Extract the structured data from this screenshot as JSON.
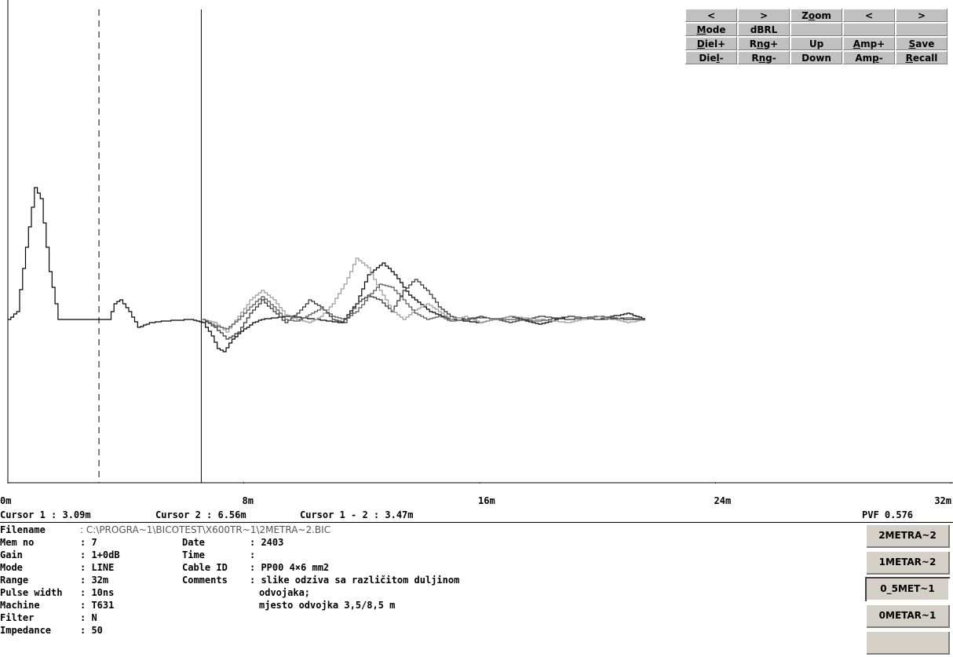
{
  "toolbar": {
    "rows": [
      [
        {
          "label": "<",
          "u": ""
        },
        {
          "label": ">",
          "u": ""
        },
        {
          "label": "Zoom",
          "u": "o"
        },
        {
          "label": "<",
          "u": ""
        },
        {
          "label": ">",
          "u": ""
        }
      ],
      [
        {
          "label": "Mode",
          "u": "M"
        },
        {
          "label": "dBRL",
          "u": ""
        },
        {
          "label": "",
          "u": ""
        },
        {
          "label": "",
          "u": ""
        },
        {
          "label": "",
          "u": ""
        }
      ],
      [
        {
          "label": "Diel+",
          "u": "D"
        },
        {
          "label": "Rng+",
          "u": "n"
        },
        {
          "label": "Up",
          "u": ""
        },
        {
          "label": "Amp+",
          "u": "A"
        },
        {
          "label": "Save",
          "u": "S"
        }
      ],
      [
        {
          "label": "Diel-",
          "u": "l"
        },
        {
          "label": "Rng-",
          "u": "n"
        },
        {
          "label": "Down",
          "u": ""
        },
        {
          "label": "Amp-",
          "u": "p"
        },
        {
          "label": "Recall",
          "u": "R"
        }
      ]
    ]
  },
  "chart_data": {
    "type": "line",
    "x_ticks": [
      "0m",
      "8m",
      "16m",
      "24m",
      "32m"
    ],
    "xlim": [
      0,
      32
    ],
    "cursor1_m": 3.09,
    "cursor2_m": 6.56,
    "series": [
      {
        "color": "#000000",
        "x": [
          0,
          0.3,
          0.6,
          0.9,
          1.1,
          1.4,
          1.7,
          2.0,
          2.8,
          3.4,
          3.6,
          3.8,
          4.1,
          4.4,
          4.8,
          5.2,
          6.2,
          6.6,
          6.9,
          7.1,
          7.3,
          7.6,
          8.0,
          8.3,
          8.6,
          9.5,
          10.5,
          11.3,
          11.8,
          12.2,
          12.7,
          13.1,
          13.6,
          14.3,
          15.0,
          16.0,
          17.0,
          18.0,
          19.0,
          20.0,
          21.0,
          21.6
        ],
        "y": [
          0,
          0.05,
          0.45,
          0.82,
          0.75,
          0.3,
          0,
          0,
          0,
          0,
          0.1,
          0.12,
          0.05,
          -0.05,
          -0.02,
          -0.01,
          0,
          -0.02,
          -0.1,
          -0.18,
          -0.2,
          -0.12,
          -0.06,
          -0.02,
          0.0,
          0.02,
          0.0,
          -0.02,
          0.1,
          0.28,
          0.35,
          0.28,
          0.15,
          0.05,
          0.0,
          -0.02,
          0.02,
          -0.03,
          0.02,
          0.0,
          0.04,
          0.0
        ]
      },
      {
        "color": "#303030",
        "x": [
          6.6,
          7.0,
          7.4,
          7.8,
          8.2,
          8.6,
          9.0,
          9.4,
          9.8,
          10.2,
          10.6,
          11.0,
          11.4,
          11.8,
          12.2,
          12.6,
          13.0,
          13.4,
          13.8,
          14.2,
          14.6,
          15.0,
          15.5,
          16.0,
          17.0,
          18.0,
          19.0,
          20.0,
          21.0,
          21.6
        ],
        "y": [
          0,
          -0.05,
          -0.12,
          -0.08,
          0.04,
          0.12,
          0.05,
          -0.02,
          0.04,
          0.12,
          0.08,
          0.0,
          -0.02,
          0.1,
          0.15,
          0.12,
          0.05,
          0.18,
          0.25,
          0.18,
          0.08,
          0.02,
          0.0,
          0.02,
          -0.02,
          0.02,
          0.0,
          0.02,
          0.0,
          0.0
        ]
      },
      {
        "color": "#999999",
        "x": [
          6.6,
          7.0,
          7.4,
          7.8,
          8.2,
          8.6,
          9.0,
          9.4,
          9.8,
          10.2,
          10.6,
          11.0,
          11.4,
          11.8,
          12.2,
          12.6,
          13.0,
          13.4,
          13.8,
          14.2,
          14.6,
          15.0,
          15.5,
          16.0,
          17.0,
          18.0,
          19.0,
          20.0,
          21.0,
          21.6
        ],
        "y": [
          0,
          -0.02,
          -0.08,
          0.02,
          0.12,
          0.18,
          0.12,
          0.03,
          0.0,
          -0.02,
          0.02,
          0.1,
          0.22,
          0.38,
          0.32,
          0.18,
          0.06,
          0.0,
          0.06,
          0.1,
          0.05,
          0.0,
          0.02,
          -0.02,
          0.02,
          0.0,
          -0.02,
          0.02,
          -0.02,
          0.0
        ]
      },
      {
        "color": "#555555",
        "x": [
          6.6,
          7.0,
          7.4,
          7.8,
          8.2,
          8.6,
          9.0,
          9.4,
          9.8,
          10.2,
          10.6,
          11.0,
          11.4,
          11.8,
          12.2,
          12.6,
          13.0,
          13.4,
          13.8,
          14.2,
          14.6,
          15.0,
          15.5,
          16.0,
          17.0,
          18.0,
          19.0,
          20.0,
          21.0,
          21.6
        ],
        "y": [
          0,
          -0.04,
          -0.06,
          0.0,
          0.08,
          0.14,
          0.08,
          0.0,
          -0.01,
          0.03,
          0.07,
          0.02,
          0.0,
          0.05,
          0.14,
          0.22,
          0.2,
          0.12,
          0.04,
          0.0,
          0.02,
          -0.01,
          0.0,
          0.01,
          0.0,
          -0.01,
          0.02,
          0.0,
          0.01,
          0.0
        ]
      }
    ]
  },
  "cursor_bar": {
    "cursor1": "Cursor 1 : 3.09m",
    "cursor2": "Cursor 2 : 6.56m",
    "delta": "Cursor 1 - 2 : 3.47m",
    "pvf": "PVF 0.576"
  },
  "info": {
    "filename_label": "Filename",
    "filename": ": C:\\PROGRA~1\\BICOTEST\\X600TR~1\\2METRA~2.BIC",
    "memno_label": "Mem no",
    "memno": ": 7",
    "gain_label": "Gain",
    "gain": ": 1+0dB",
    "mode_label": "Mode",
    "mode": ": LINE",
    "range_label": "Range",
    "range": ": 32m",
    "pulse_label": "Pulse width",
    "pulse": ": 10ns",
    "machine_label": "Machine",
    "machine": ": T631",
    "filter_label": "Filter",
    "filter": ": N",
    "impedance_label": "Impedance",
    "impedance": ": 50",
    "date_label": "Date",
    "date": ": 2403",
    "time_label": "Time",
    "time": ":",
    "cable_label": "Cable ID",
    "cable": ": PP00 4×6 mm2",
    "comments_label": "Comments",
    "comments1": ": slike odziva sa različitom duljinom",
    "comments2": "odvojaka;",
    "comments3": "mjesto odvojka 3,5/8,5 m"
  },
  "files": [
    "2METRA~2",
    "1METAR~2",
    "0_5MET~1",
    "0METAR~1",
    ""
  ]
}
